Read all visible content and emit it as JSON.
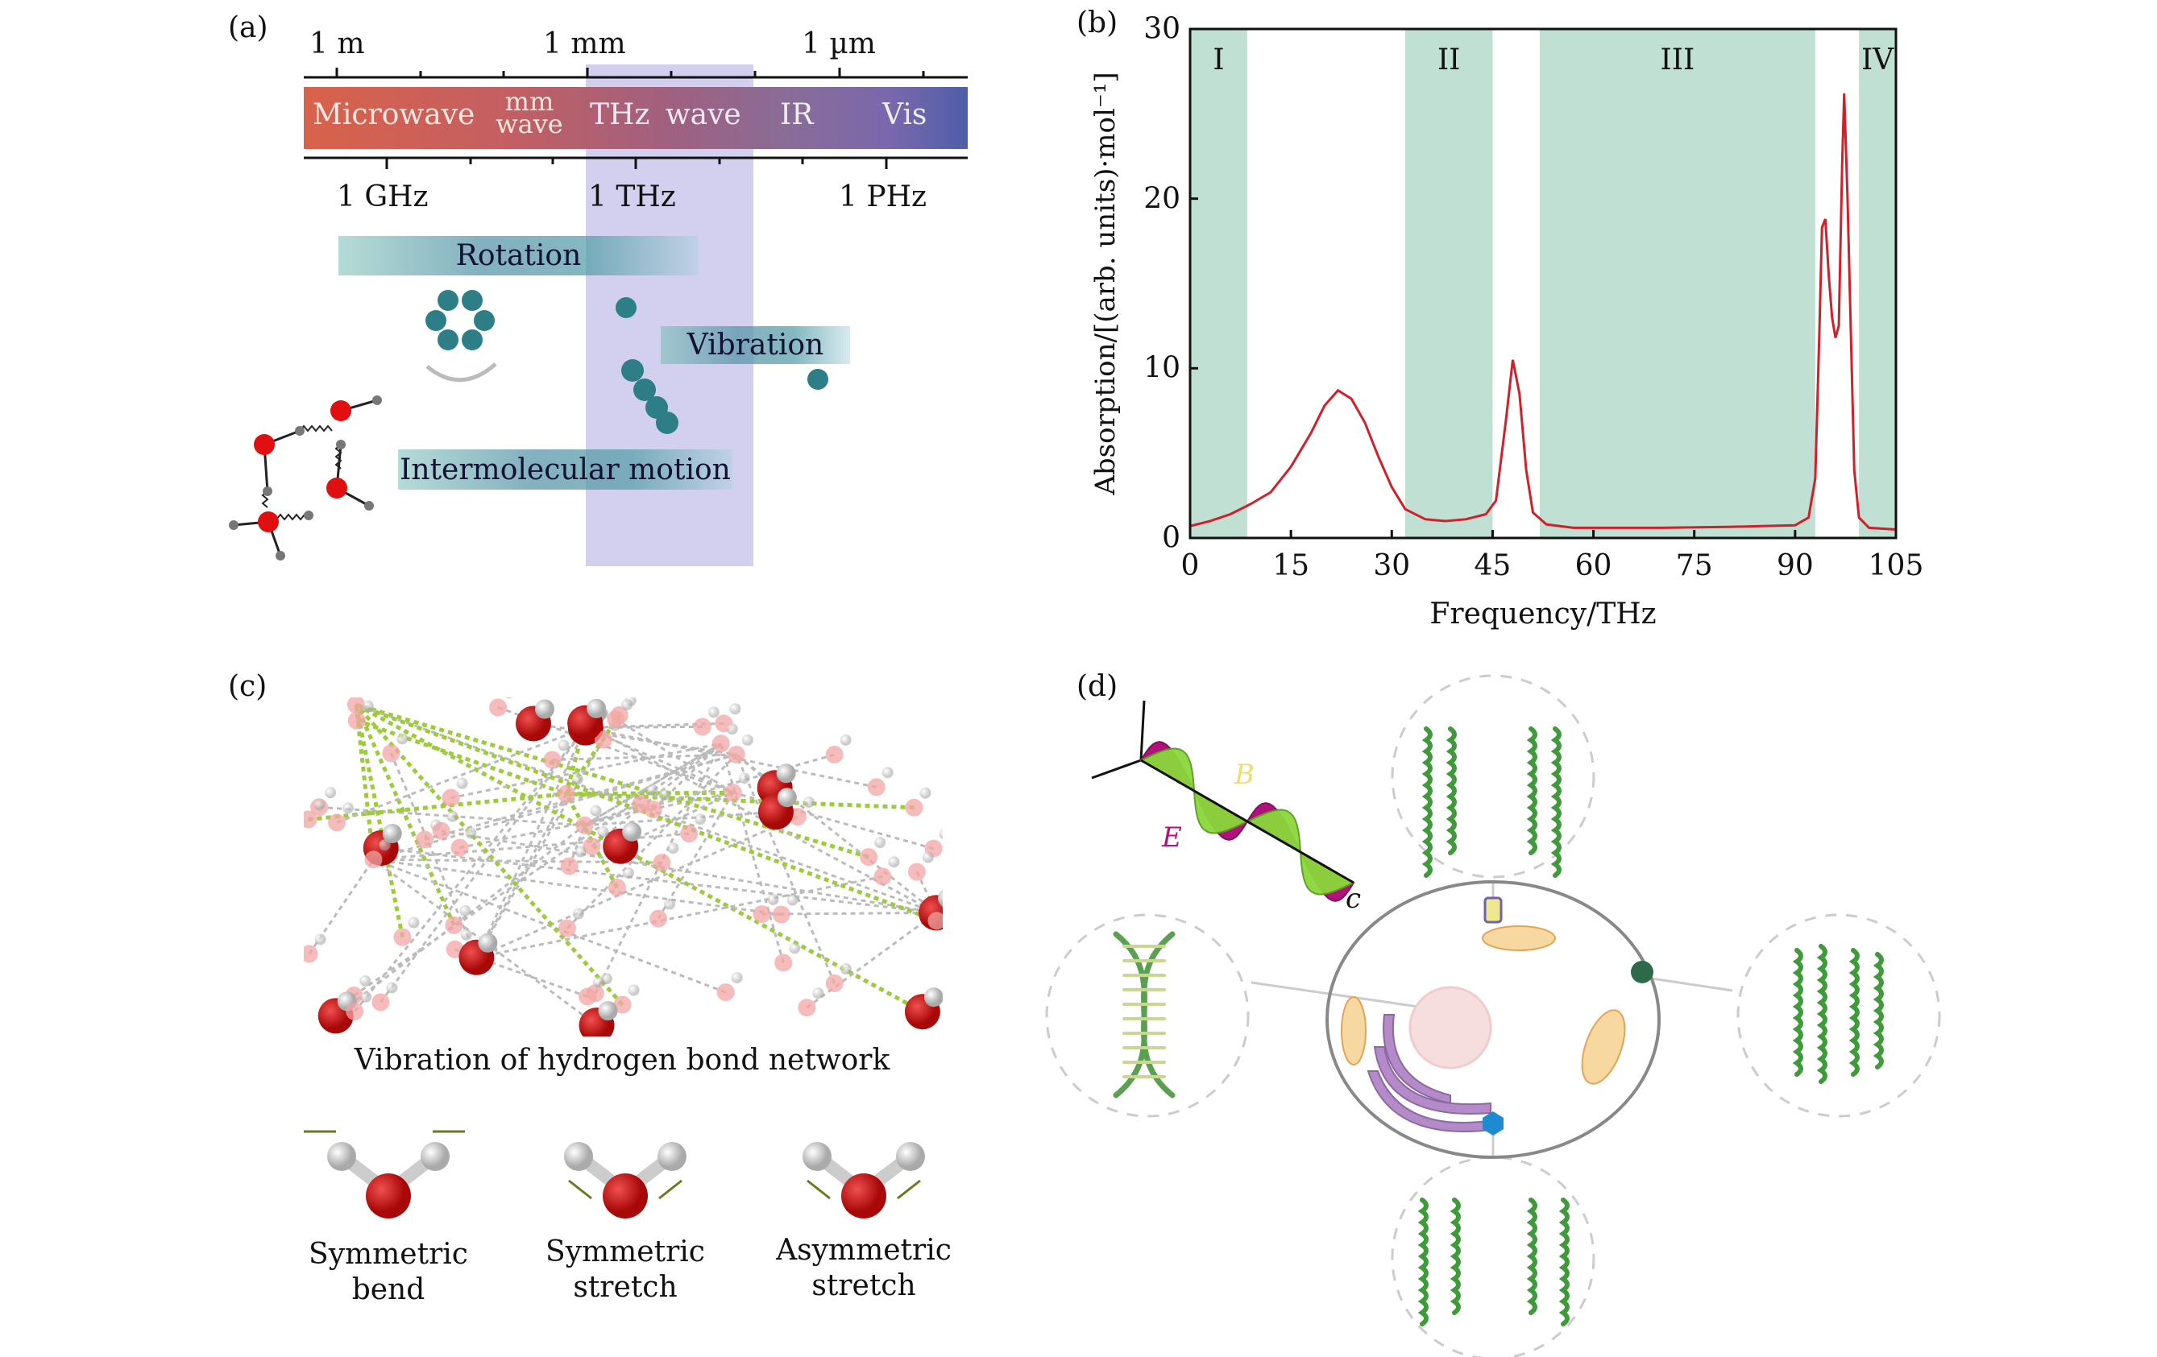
{
  "panel_a": {
    "label": "(a)",
    "wavelength_ticks": [
      "1 m",
      "1 mm",
      "1 µm"
    ],
    "frequency_ticks": [
      "1 GHz",
      "1 THz",
      "1 PHz"
    ],
    "bands": [
      "Microwave",
      "mm wave",
      "THz wave",
      "IR",
      "Vis"
    ],
    "motions": [
      "Rotation",
      "Vibration",
      "Intermolecular motion"
    ],
    "colors": {
      "microwave": "#d9624a",
      "vis": "#5a63a8",
      "thz_highlight": "#b6b0e2"
    }
  },
  "panel_b": {
    "label": "(b)"
  },
  "chart_data": {
    "type": "line",
    "title": "",
    "xlabel": "Frequency/THz",
    "ylabel": "Absorption/[(arb. units)·mol⁻¹]",
    "xlim": [
      0,
      105
    ],
    "ylim": [
      0,
      30
    ],
    "xticks": [
      0,
      15,
      30,
      45,
      60,
      75,
      90,
      105
    ],
    "yticks": [
      0,
      10,
      20,
      30
    ],
    "grid": false,
    "line_color": "#d0202a",
    "region_color": "#bfe0d3",
    "regions": [
      {
        "label": "I",
        "range": [
          0,
          8.5
        ]
      },
      {
        "label": "II",
        "range": [
          32,
          45
        ]
      },
      {
        "label": "III",
        "range": [
          52,
          93
        ]
      },
      {
        "label": "IV",
        "range": [
          99.5,
          105
        ]
      }
    ],
    "series": [
      {
        "x": [
          0,
          3,
          6,
          9,
          12,
          15,
          18,
          20,
          22,
          24,
          26,
          28,
          30,
          32,
          35,
          38,
          41,
          44,
          45.5,
          47,
          48,
          49,
          50,
          51,
          53,
          57,
          70,
          80,
          85,
          90,
          92,
          93,
          93.6,
          94,
          94.5,
          95,
          95.5,
          96,
          96.5,
          97,
          97.3,
          97.8,
          98.3,
          98.8,
          99.5,
          101,
          105
        ],
        "y": [
          0.7,
          1.0,
          1.4,
          2.0,
          2.7,
          4.2,
          6.2,
          7.8,
          8.7,
          8.2,
          6.8,
          4.8,
          3.0,
          1.7,
          1.1,
          1.0,
          1.1,
          1.4,
          2.2,
          7.0,
          10.5,
          8.5,
          4.0,
          1.5,
          0.8,
          0.6,
          0.6,
          0.65,
          0.7,
          0.75,
          1.2,
          3.5,
          12,
          18.3,
          18.8,
          15.5,
          13.0,
          11.8,
          12.5,
          22,
          26.2,
          20,
          12,
          4,
          1.2,
          0.6,
          0.5
        ]
      }
    ]
  },
  "panel_c": {
    "label": "(c)",
    "caption": "Vibration of hydrogen bond network",
    "modes": [
      {
        "line1": "Symmetric",
        "line2": "bend"
      },
      {
        "line1": "Symmetric",
        "line2": "stretch"
      },
      {
        "line1": "Asymmetric",
        "line2": "stretch"
      }
    ]
  },
  "panel_d": {
    "label": "(d)",
    "wave_labels": {
      "b": "B",
      "e": "E",
      "c": "c"
    },
    "colors": {
      "e_field": "#b0117a",
      "b_field": "#7ccf2a",
      "protein": "#3f9a3a"
    }
  }
}
